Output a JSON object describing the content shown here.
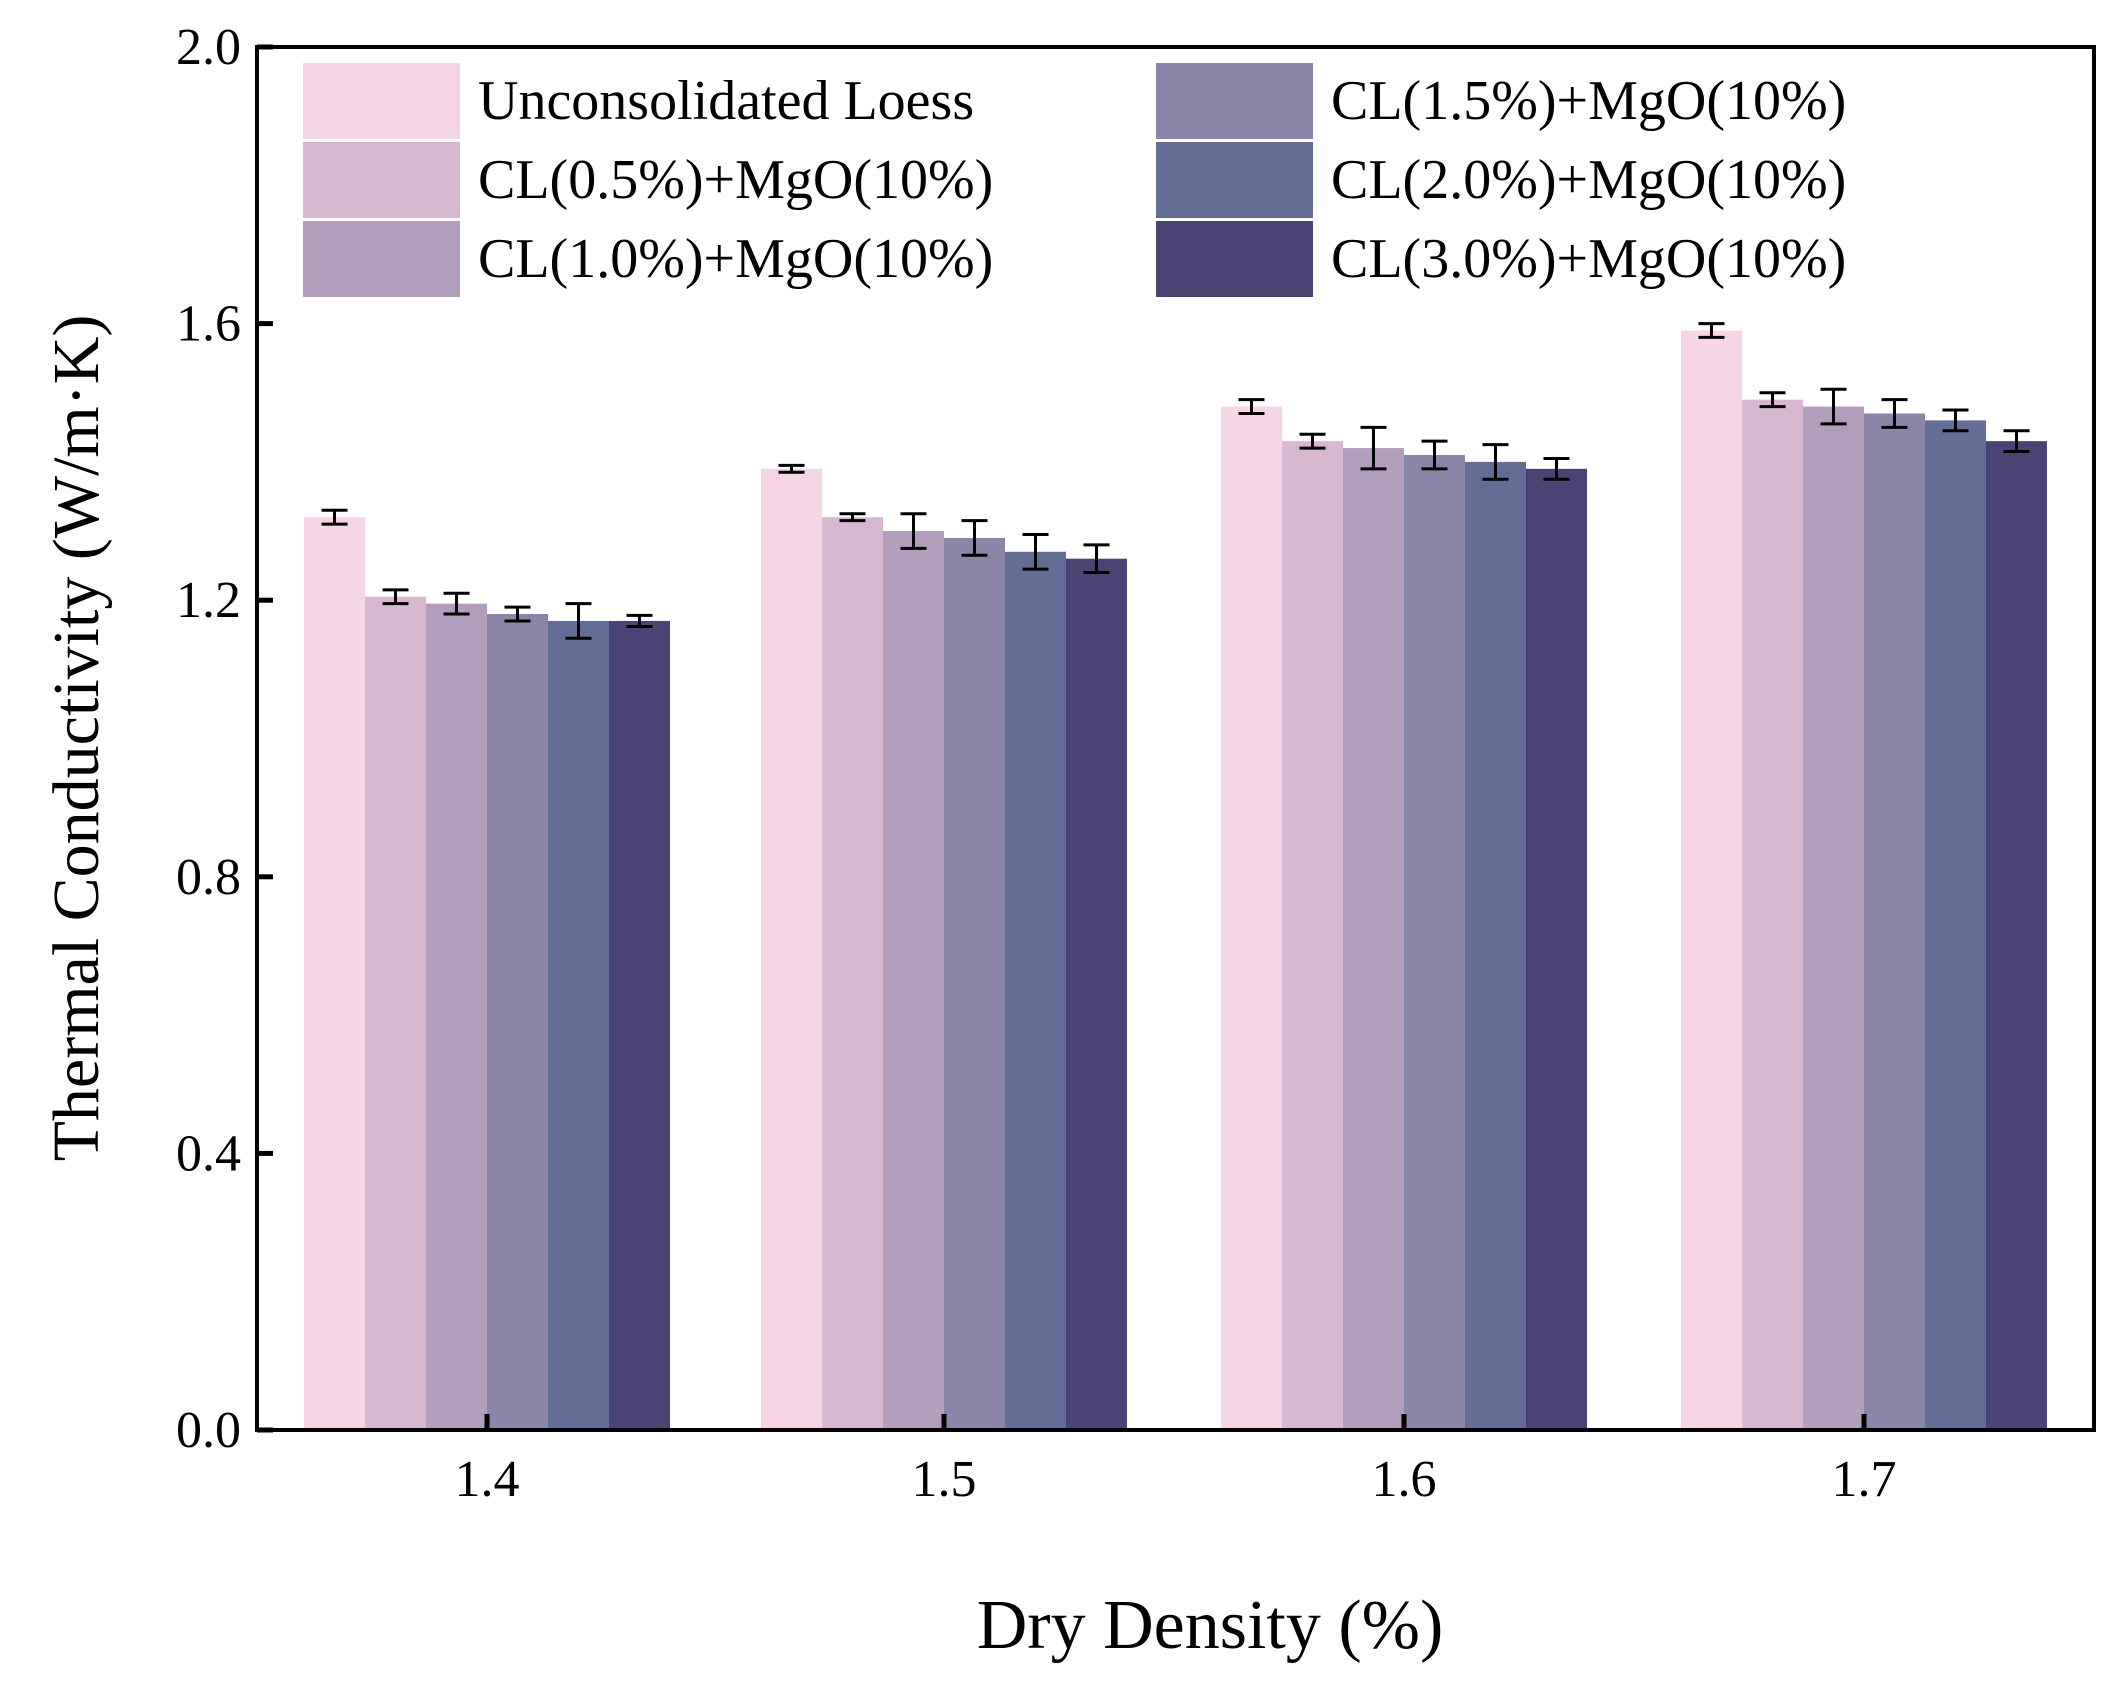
{
  "chart_data": {
    "type": "bar",
    "title": "",
    "xlabel": "Dry Density (%)",
    "ylabel": "Thermal Conductivity (W/m·K)",
    "ylim": [
      0,
      2.0
    ],
    "yticks": [
      "0.0",
      "0.4",
      "0.8",
      "1.2",
      "1.6",
      "2.0"
    ],
    "ytick_values": [
      0,
      0.4,
      0.8,
      1.2,
      1.6,
      2.0
    ],
    "categories": [
      "1.4",
      "1.5",
      "1.6",
      "1.7"
    ],
    "legend_position": "top",
    "grid": false,
    "series": [
      {
        "name": "Unconsolidated Loess",
        "color": "#f6d5e5",
        "values": [
          1.32,
          1.39,
          1.48,
          1.59
        ],
        "errors": [
          0.01,
          0.005,
          0.01,
          0.01
        ]
      },
      {
        "name": "CL(0.5%)+MgO(10%)",
        "color": "#d8b8d0",
        "values": [
          1.205,
          1.32,
          1.43,
          1.49
        ],
        "errors": [
          0.01,
          0.005,
          0.01,
          0.01
        ]
      },
      {
        "name": "CL(1.0%)+MgO(10%)",
        "color": "#b29dbc",
        "values": [
          1.195,
          1.3,
          1.42,
          1.48
        ],
        "errors": [
          0.015,
          0.025,
          0.03,
          0.025
        ]
      },
      {
        "name": "CL(1.5%)+MgO(10%)",
        "color": "#8b86a9",
        "values": [
          1.18,
          1.29,
          1.41,
          1.47
        ],
        "errors": [
          0.01,
          0.025,
          0.02,
          0.02
        ]
      },
      {
        "name": "CL(2.0%)+MgO(10%)",
        "color": "#626e96",
        "values": [
          1.17,
          1.27,
          1.4,
          1.46
        ],
        "errors": [
          0.025,
          0.025,
          0.025,
          0.015
        ]
      },
      {
        "name": "CL(3.0%)+MgO(10%)",
        "color": "#4b4374",
        "values": [
          1.17,
          1.26,
          1.39,
          1.43
        ],
        "errors": [
          0.008,
          0.02,
          0.015,
          0.015
        ]
      }
    ]
  }
}
